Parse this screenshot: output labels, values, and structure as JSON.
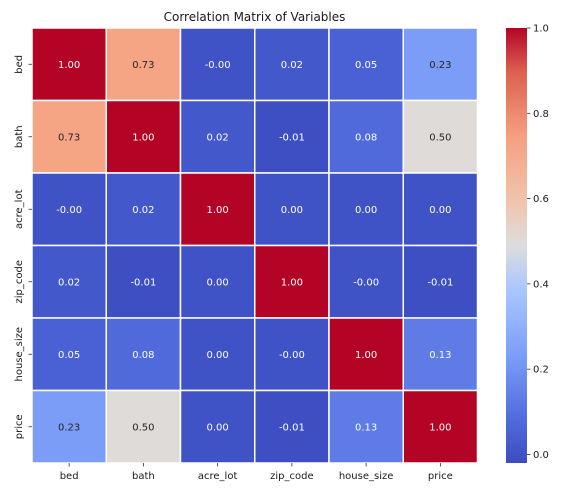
{
  "chart_data": {
    "type": "heatmap",
    "title": "Correlation Matrix of Variables",
    "xlabel": "",
    "ylabel": "",
    "categories": [
      "bed",
      "bath",
      "acre_lot",
      "zip_code",
      "house_size",
      "price"
    ],
    "values": [
      [
        1.0,
        0.73,
        -0.0,
        0.02,
        0.05,
        0.23
      ],
      [
        0.73,
        1.0,
        0.02,
        -0.01,
        0.08,
        0.5
      ],
      [
        -0.0,
        0.02,
        1.0,
        0.0,
        0.0,
        0.0
      ],
      [
        0.02,
        -0.01,
        0.0,
        1.0,
        -0.0,
        -0.01
      ],
      [
        0.05,
        0.08,
        0.0,
        -0.0,
        1.0,
        0.13
      ],
      [
        0.23,
        0.5,
        0.0,
        -0.01,
        0.13,
        1.0
      ]
    ],
    "value_labels": [
      [
        "1.00",
        "0.73",
        "-0.00",
        "0.02",
        "0.05",
        "0.23"
      ],
      [
        "0.73",
        "1.00",
        "0.02",
        "-0.01",
        "0.08",
        "0.50"
      ],
      [
        "-0.00",
        "0.02",
        "1.00",
        "0.00",
        "0.00",
        "0.00"
      ],
      [
        "0.02",
        "-0.01",
        "0.00",
        "1.00",
        "-0.00",
        "-0.01"
      ],
      [
        "0.05",
        "0.08",
        "0.00",
        "-0.00",
        "1.00",
        "0.13"
      ],
      [
        "0.23",
        "0.50",
        "0.00",
        "-0.01",
        "0.13",
        "1.00"
      ]
    ],
    "colormap": "coolwarm",
    "colorbar": {
      "range": [
        -0.02,
        1.0
      ],
      "ticks": [
        0.0,
        0.2,
        0.4,
        0.6,
        0.8,
        1.0
      ],
      "tick_labels": [
        "0.0",
        "0.2",
        "0.4",
        "0.6",
        "0.8",
        "1.0"
      ]
    },
    "grid": true,
    "cell_border_color": "#ffffff"
  }
}
